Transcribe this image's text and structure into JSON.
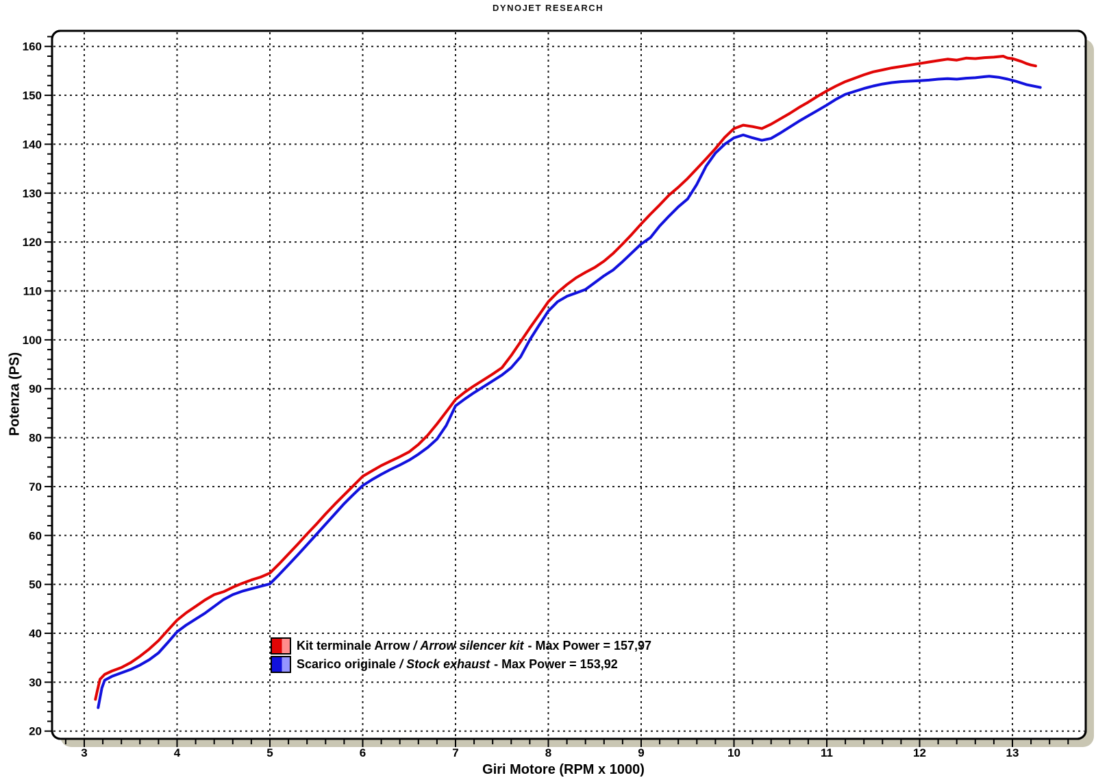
{
  "title": "DYNOJET RESEARCH",
  "colors": {
    "background": "#ffffff",
    "plot_background": "#ffffff",
    "frame_border": "#000000",
    "frame_shadow": "#c9c6b3",
    "gridline": "#1a1a1a",
    "series_arrow": "#e10505",
    "series_arrow_light": "#ff8d8d",
    "series_stock": "#1111dd",
    "series_stock_light": "#9595ff"
  },
  "axes": {
    "x": {
      "label": "Giri Motore (RPM x 1000)",
      "ticks": [
        3,
        4,
        5,
        6,
        7,
        8,
        9,
        10,
        11,
        12,
        13
      ],
      "minor_step": 0.2,
      "minor_start": 2.8,
      "minor_end": 13.6
    },
    "y": {
      "label": "Potenza (PS)",
      "ticks": [
        20,
        30,
        40,
        50,
        60,
        70,
        80,
        90,
        100,
        110,
        120,
        130,
        140,
        150,
        160
      ],
      "minor_step": 2,
      "minor_start": 20,
      "minor_end": 162
    }
  },
  "legend": {
    "items": [
      {
        "name_it": "Kit terminale Arrow",
        "separator": "/",
        "name_en": "Arrow silencer kit",
        "max_label": "- Max Power = 157,97"
      },
      {
        "name_it": "Scarico originale",
        "separator": "/",
        "name_en": "Stock exhaust",
        "max_label": "- Max Power = 153,92"
      }
    ]
  },
  "chart_data": {
    "type": "line",
    "title": "DYNOJET RESEARCH",
    "xlabel": "Giri Motore (RPM x 1000)",
    "ylabel": "Potenza (PS)",
    "xlim": [
      2.65,
      13.79
    ],
    "ylim": [
      18.4,
      163.2
    ],
    "grid": true,
    "legend_position": "lower-center-inside",
    "series": [
      {
        "name": "Kit terminale Arrow / Arrow silencer kit",
        "max_power": 157.97,
        "color": "#e10505",
        "points": [
          [
            3.12,
            26.5
          ],
          [
            3.14,
            28.2
          ],
          [
            3.17,
            30.6
          ],
          [
            3.22,
            31.6
          ],
          [
            3.3,
            32.3
          ],
          [
            3.4,
            33.0
          ],
          [
            3.5,
            34.0
          ],
          [
            3.6,
            35.3
          ],
          [
            3.7,
            36.8
          ],
          [
            3.8,
            38.5
          ],
          [
            3.9,
            40.6
          ],
          [
            4.0,
            42.7
          ],
          [
            4.1,
            44.2
          ],
          [
            4.2,
            45.5
          ],
          [
            4.3,
            46.8
          ],
          [
            4.4,
            47.9
          ],
          [
            4.5,
            48.5
          ],
          [
            4.6,
            49.4
          ],
          [
            4.7,
            50.2
          ],
          [
            4.8,
            50.9
          ],
          [
            4.9,
            51.5
          ],
          [
            5.0,
            52.3
          ],
          [
            5.1,
            54.2
          ],
          [
            5.2,
            56.2
          ],
          [
            5.3,
            58.2
          ],
          [
            5.4,
            60.3
          ],
          [
            5.5,
            62.3
          ],
          [
            5.6,
            64.4
          ],
          [
            5.7,
            66.4
          ],
          [
            5.8,
            68.3
          ],
          [
            5.9,
            70.2
          ],
          [
            6.0,
            72.1
          ],
          [
            6.1,
            73.2
          ],
          [
            6.2,
            74.3
          ],
          [
            6.3,
            75.2
          ],
          [
            6.4,
            76.1
          ],
          [
            6.5,
            77.1
          ],
          [
            6.6,
            78.6
          ],
          [
            6.7,
            80.5
          ],
          [
            6.8,
            82.8
          ],
          [
            6.9,
            85.3
          ],
          [
            7.0,
            87.8
          ],
          [
            7.1,
            89.3
          ],
          [
            7.2,
            90.6
          ],
          [
            7.3,
            91.8
          ],
          [
            7.4,
            93.0
          ],
          [
            7.5,
            94.3
          ],
          [
            7.6,
            96.8
          ],
          [
            7.7,
            99.6
          ],
          [
            7.8,
            102.4
          ],
          [
            7.9,
            105.1
          ],
          [
            8.0,
            107.8
          ],
          [
            8.1,
            109.7
          ],
          [
            8.2,
            111.3
          ],
          [
            8.3,
            112.7
          ],
          [
            8.4,
            113.8
          ],
          [
            8.5,
            114.8
          ],
          [
            8.6,
            116.1
          ],
          [
            8.7,
            117.7
          ],
          [
            8.8,
            119.6
          ],
          [
            8.9,
            121.6
          ],
          [
            9.0,
            123.7
          ],
          [
            9.1,
            125.7
          ],
          [
            9.2,
            127.6
          ],
          [
            9.3,
            129.6
          ],
          [
            9.4,
            131.2
          ],
          [
            9.5,
            133.0
          ],
          [
            9.6,
            135.0
          ],
          [
            9.7,
            137.0
          ],
          [
            9.8,
            139.1
          ],
          [
            9.9,
            141.4
          ],
          [
            10.0,
            143.2
          ],
          [
            10.1,
            143.9
          ],
          [
            10.2,
            143.6
          ],
          [
            10.3,
            143.2
          ],
          [
            10.4,
            144.1
          ],
          [
            10.5,
            145.2
          ],
          [
            10.6,
            146.3
          ],
          [
            10.7,
            147.5
          ],
          [
            10.8,
            148.6
          ],
          [
            10.9,
            149.8
          ],
          [
            11.0,
            150.9
          ],
          [
            11.1,
            151.9
          ],
          [
            11.2,
            152.8
          ],
          [
            11.3,
            153.5
          ],
          [
            11.4,
            154.2
          ],
          [
            11.5,
            154.8
          ],
          [
            11.6,
            155.2
          ],
          [
            11.7,
            155.6
          ],
          [
            11.8,
            155.9
          ],
          [
            11.9,
            156.2
          ],
          [
            12.0,
            156.5
          ],
          [
            12.1,
            156.8
          ],
          [
            12.2,
            157.1
          ],
          [
            12.3,
            157.4
          ],
          [
            12.4,
            157.2
          ],
          [
            12.5,
            157.6
          ],
          [
            12.6,
            157.5
          ],
          [
            12.7,
            157.7
          ],
          [
            12.8,
            157.8
          ],
          [
            12.9,
            158.0
          ],
          [
            12.95,
            157.6
          ],
          [
            13.0,
            157.5
          ],
          [
            13.05,
            157.2
          ],
          [
            13.1,
            156.9
          ],
          [
            13.15,
            156.5
          ],
          [
            13.2,
            156.2
          ],
          [
            13.25,
            156.0
          ]
        ]
      },
      {
        "name": "Scarico originale / Stock exhaust",
        "max_power": 153.92,
        "color": "#1111dd",
        "points": [
          [
            3.15,
            24.8
          ],
          [
            3.17,
            26.8
          ],
          [
            3.19,
            28.8
          ],
          [
            3.22,
            30.4
          ],
          [
            3.3,
            31.2
          ],
          [
            3.4,
            31.9
          ],
          [
            3.5,
            32.6
          ],
          [
            3.6,
            33.5
          ],
          [
            3.7,
            34.6
          ],
          [
            3.8,
            36.0
          ],
          [
            3.9,
            38.1
          ],
          [
            4.0,
            40.3
          ],
          [
            4.1,
            41.7
          ],
          [
            4.2,
            42.9
          ],
          [
            4.3,
            44.1
          ],
          [
            4.4,
            45.5
          ],
          [
            4.5,
            46.9
          ],
          [
            4.6,
            47.9
          ],
          [
            4.7,
            48.6
          ],
          [
            4.8,
            49.1
          ],
          [
            4.9,
            49.6
          ],
          [
            5.0,
            50.1
          ],
          [
            5.1,
            52.0
          ],
          [
            5.2,
            54.0
          ],
          [
            5.3,
            56.0
          ],
          [
            5.4,
            58.1
          ],
          [
            5.5,
            60.2
          ],
          [
            5.6,
            62.3
          ],
          [
            5.7,
            64.4
          ],
          [
            5.8,
            66.5
          ],
          [
            5.9,
            68.4
          ],
          [
            6.0,
            70.2
          ],
          [
            6.1,
            71.4
          ],
          [
            6.2,
            72.5
          ],
          [
            6.3,
            73.5
          ],
          [
            6.4,
            74.4
          ],
          [
            6.5,
            75.4
          ],
          [
            6.6,
            76.6
          ],
          [
            6.7,
            78.0
          ],
          [
            6.8,
            79.7
          ],
          [
            6.9,
            82.5
          ],
          [
            7.0,
            86.5
          ],
          [
            7.1,
            87.9
          ],
          [
            7.2,
            89.2
          ],
          [
            7.3,
            90.4
          ],
          [
            7.4,
            91.6
          ],
          [
            7.5,
            92.8
          ],
          [
            7.6,
            94.3
          ],
          [
            7.7,
            96.5
          ],
          [
            7.8,
            100.0
          ],
          [
            7.9,
            103.0
          ],
          [
            8.0,
            105.9
          ],
          [
            8.1,
            107.8
          ],
          [
            8.2,
            108.9
          ],
          [
            8.3,
            109.6
          ],
          [
            8.4,
            110.3
          ],
          [
            8.5,
            111.7
          ],
          [
            8.6,
            113.1
          ],
          [
            8.7,
            114.3
          ],
          [
            8.8,
            116.0
          ],
          [
            8.9,
            117.8
          ],
          [
            9.0,
            119.6
          ],
          [
            9.1,
            120.9
          ],
          [
            9.2,
            123.3
          ],
          [
            9.3,
            125.3
          ],
          [
            9.4,
            127.2
          ],
          [
            9.5,
            128.8
          ],
          [
            9.6,
            131.8
          ],
          [
            9.7,
            135.5
          ],
          [
            9.8,
            138.2
          ],
          [
            9.9,
            140.0
          ],
          [
            10.0,
            141.3
          ],
          [
            10.1,
            141.9
          ],
          [
            10.2,
            141.3
          ],
          [
            10.3,
            140.8
          ],
          [
            10.4,
            141.2
          ],
          [
            10.5,
            142.3
          ],
          [
            10.6,
            143.5
          ],
          [
            10.7,
            144.7
          ],
          [
            10.8,
            145.8
          ],
          [
            10.9,
            146.9
          ],
          [
            11.0,
            148.0
          ],
          [
            11.1,
            149.2
          ],
          [
            11.2,
            150.2
          ],
          [
            11.3,
            150.8
          ],
          [
            11.4,
            151.4
          ],
          [
            11.5,
            151.9
          ],
          [
            11.6,
            152.3
          ],
          [
            11.7,
            152.6
          ],
          [
            11.8,
            152.8
          ],
          [
            11.9,
            152.9
          ],
          [
            12.0,
            153.0
          ],
          [
            12.1,
            153.1
          ],
          [
            12.2,
            153.3
          ],
          [
            12.3,
            153.4
          ],
          [
            12.4,
            153.3
          ],
          [
            12.5,
            153.5
          ],
          [
            12.6,
            153.6
          ],
          [
            12.7,
            153.8
          ],
          [
            12.75,
            153.9
          ],
          [
            12.85,
            153.7
          ],
          [
            12.95,
            153.3
          ],
          [
            13.05,
            152.8
          ],
          [
            13.15,
            152.2
          ],
          [
            13.25,
            151.8
          ],
          [
            13.3,
            151.6
          ]
        ]
      }
    ]
  }
}
